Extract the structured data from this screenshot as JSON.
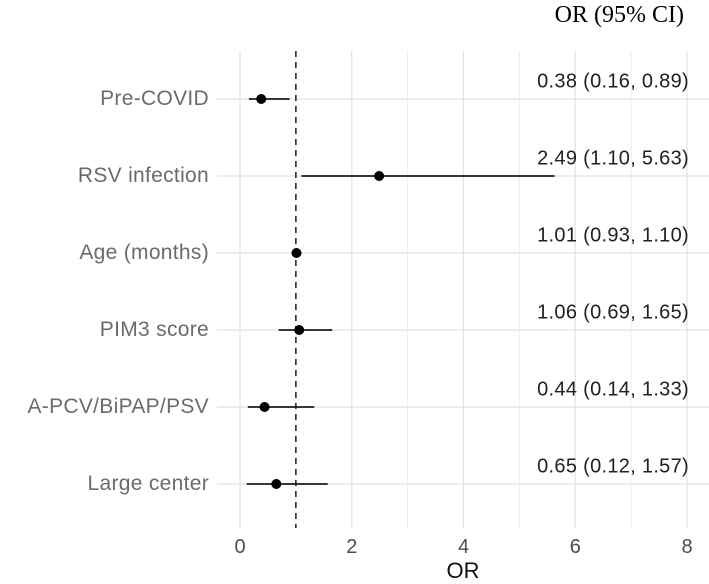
{
  "header": {
    "or_ci_label": "OR (95% CI)"
  },
  "chart_data": {
    "type": "forest",
    "title": "",
    "xlabel": "OR",
    "x_ticks": [
      0,
      2,
      4,
      6,
      8
    ],
    "x_minor_ticks": [
      1,
      3,
      5,
      7
    ],
    "xlim": [
      -0.41,
      8.41
    ],
    "reference_line": 1,
    "grid": true,
    "legend_position": "none",
    "rows": [
      {
        "label": "Pre-COVID",
        "or": 0.38,
        "lo": 0.16,
        "hi": 0.89,
        "ci_text": "0.38 (0.16, 0.89)"
      },
      {
        "label": "RSV infection",
        "or": 2.49,
        "lo": 1.1,
        "hi": 5.63,
        "ci_text": "2.49 (1.10, 5.63)"
      },
      {
        "label": "Age (months)",
        "or": 1.01,
        "lo": 0.93,
        "hi": 1.1,
        "ci_text": "1.01 (0.93, 1.10)"
      },
      {
        "label": "PIM3 score",
        "or": 1.06,
        "lo": 0.69,
        "hi": 1.65,
        "ci_text": "1.06 (0.69, 1.65)"
      },
      {
        "label": "A-PCV/BiPAP/PSV",
        "or": 0.44,
        "lo": 0.14,
        "hi": 1.33,
        "ci_text": "0.44 (0.14, 1.33)"
      },
      {
        "label": "Large center",
        "or": 0.65,
        "lo": 0.12,
        "hi": 1.57,
        "ci_text": "0.65 (0.12, 1.57)"
      }
    ],
    "colors": {
      "point": "#000000",
      "ci_line": "#1a1a1a",
      "reference_line": "#1a1a1a",
      "grid_major": "#e2e2e2",
      "grid_minor": "#ededed",
      "axis_text": "#4d4d4d",
      "row_label_text": "#6b6b6b",
      "value_text": "#212121"
    }
  }
}
